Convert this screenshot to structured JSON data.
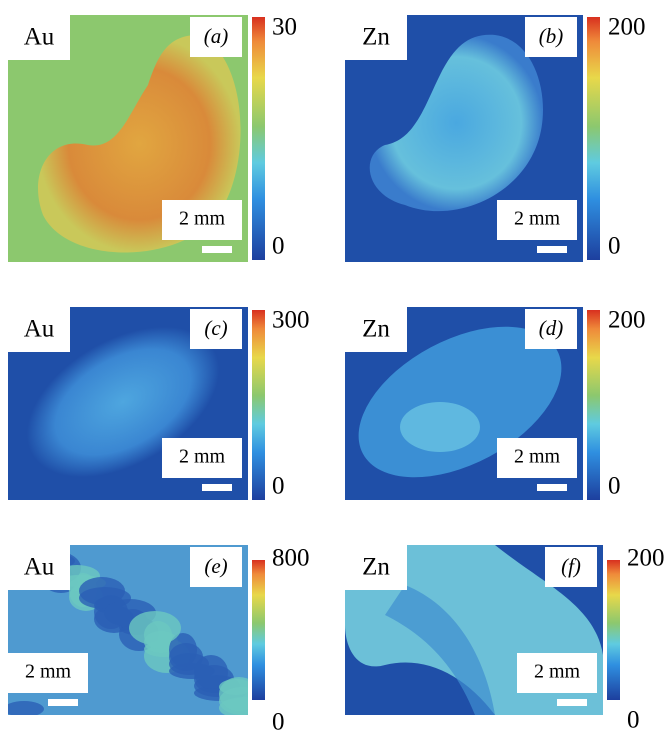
{
  "panels": [
    {
      "element": "Au",
      "label": "(a)",
      "scale": "2 mm",
      "colorbar": {
        "max": 30,
        "min": 0
      }
    },
    {
      "element": "Zn",
      "label": "(b)",
      "scale": "2 mm",
      "colorbar": {
        "max": 200,
        "min": 0
      }
    },
    {
      "element": "Au",
      "label": "(c)",
      "scale": "2 mm",
      "colorbar": {
        "max": 300,
        "min": 0
      }
    },
    {
      "element": "Zn",
      "label": "(d)",
      "scale": "2 mm",
      "colorbar": {
        "max": 200,
        "min": 0
      }
    },
    {
      "element": "Au",
      "label": "(e)",
      "scale": "2 mm",
      "colorbar": {
        "max": 800,
        "min": 0
      }
    },
    {
      "element": "Zn",
      "label": "(f)",
      "scale": "2 mm",
      "colorbar": {
        "max": 200,
        "min": 0
      }
    }
  ]
}
